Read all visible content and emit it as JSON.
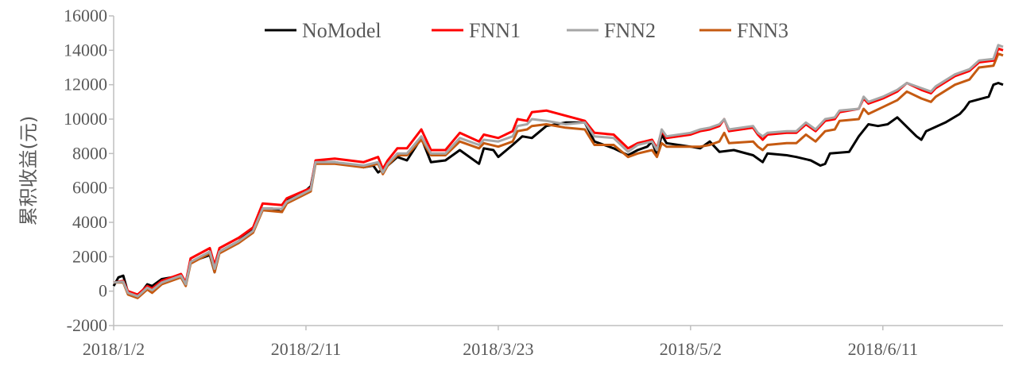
{
  "chart_data": {
    "type": "line",
    "title": "",
    "xlabel": "",
    "ylabel": "累积收益(元)",
    "ylim": [
      -2000,
      16000
    ],
    "yticks": [
      -2000,
      0,
      2000,
      4000,
      6000,
      8000,
      10000,
      12000,
      14000,
      16000
    ],
    "ytick_labels": [
      "-2000",
      "0",
      "2000",
      "4000",
      "6000",
      "8000",
      "10000",
      "12000",
      "14000",
      "16000"
    ],
    "x_unit": "days since 2018/1/2",
    "xlim": [
      0,
      185
    ],
    "xticks": [
      0,
      40,
      80,
      120,
      160
    ],
    "xtick_labels": [
      "2018/1/2",
      "2018/2/11",
      "2018/3/23",
      "2018/5/2",
      "2018/6/11"
    ],
    "grid": false,
    "legend_position": "top-center",
    "series": [
      {
        "name": "NoModel",
        "color": "#000000",
        "x": [
          0,
          1,
          2,
          3,
          5,
          7,
          8,
          10,
          14,
          15,
          16,
          20,
          21,
          22,
          26,
          29,
          31,
          33,
          35,
          36,
          39,
          41,
          42,
          46,
          52,
          54,
          55,
          57,
          59,
          61,
          64,
          66,
          69,
          72,
          76,
          77,
          79,
          80,
          83,
          85,
          87,
          90,
          94,
          98,
          100,
          104,
          107,
          109,
          111,
          112,
          113,
          114,
          115,
          120,
          122,
          124,
          126,
          129,
          133,
          135,
          136,
          140,
          142,
          145,
          147,
          148,
          149,
          153,
          155,
          157,
          159,
          161,
          163,
          167,
          168,
          169,
          173,
          176,
          177,
          178,
          182,
          183,
          184,
          185
        ],
        "values": [
          300,
          800,
          900,
          -100,
          -350,
          400,
          300,
          700,
          900,
          400,
          1700,
          2100,
          1100,
          2300,
          2900,
          3600,
          4800,
          4800,
          4600,
          5300,
          5600,
          6100,
          7500,
          7500,
          7200,
          7300,
          6900,
          7300,
          7800,
          7600,
          8900,
          7500,
          7600,
          8200,
          7400,
          8300,
          8200,
          7800,
          8500,
          9000,
          8900,
          9600,
          9800,
          9800,
          8700,
          8300,
          7900,
          8200,
          8400,
          8700,
          7900,
          9100,
          8600,
          8400,
          8300,
          8700,
          8100,
          8200,
          7900,
          7500,
          8000,
          7900,
          7800,
          7600,
          7300,
          7400,
          8000,
          8100,
          9000,
          9700,
          9600,
          9700,
          10100,
          9000,
          8800,
          9300,
          9800,
          10300,
          10600,
          11000,
          11300,
          12000,
          12100,
          12000
        ]
      },
      {
        "name": "FNN1",
        "color": "#ff0000",
        "x": [
          0,
          2,
          3,
          5,
          7,
          8,
          10,
          14,
          15,
          16,
          20,
          21,
          22,
          26,
          29,
          31,
          35,
          36,
          41,
          42,
          46,
          52,
          55,
          56,
          57,
          59,
          61,
          64,
          66,
          69,
          72,
          76,
          77,
          80,
          83,
          84,
          86,
          87,
          90,
          94,
          98,
          100,
          104,
          107,
          109,
          112,
          113,
          114,
          115,
          120,
          122,
          124,
          126,
          127,
          128,
          133,
          134,
          135,
          136,
          140,
          142,
          144,
          146,
          148,
          150,
          151,
          155,
          156,
          157,
          160,
          163,
          165,
          168,
          170,
          171,
          175,
          178,
          180,
          183,
          184,
          185
        ],
        "values": [
          500,
          600,
          0,
          -200,
          300,
          150,
          600,
          1000,
          500,
          1900,
          2500,
          1500,
          2500,
          3100,
          3700,
          5100,
          5000,
          5400,
          6000,
          7600,
          7700,
          7500,
          7800,
          7100,
          7600,
          8300,
          8300,
          9400,
          8200,
          8200,
          9200,
          8700,
          9100,
          8900,
          9300,
          10000,
          9900,
          10400,
          10500,
          10200,
          9900,
          9200,
          9100,
          8300,
          8600,
          8800,
          8300,
          9300,
          8900,
          9100,
          9300,
          9400,
          9600,
          10000,
          9300,
          9500,
          9100,
          8800,
          9100,
          9200,
          9200,
          9700,
          9300,
          9900,
          10000,
          10400,
          10600,
          11200,
          10900,
          11200,
          11600,
          12100,
          11700,
          11500,
          11800,
          12500,
          12800,
          13300,
          13400,
          14100,
          14000
        ]
      },
      {
        "name": "FNN2",
        "color": "#a6a6a6",
        "x": [
          0,
          2,
          3,
          5,
          7,
          8,
          10,
          14,
          15,
          16,
          20,
          21,
          22,
          26,
          29,
          31,
          35,
          36,
          41,
          42,
          46,
          52,
          55,
          56,
          57,
          59,
          61,
          64,
          66,
          69,
          72,
          76,
          77,
          80,
          83,
          84,
          86,
          87,
          90,
          94,
          98,
          100,
          104,
          107,
          109,
          112,
          113,
          114,
          115,
          120,
          122,
          124,
          126,
          127,
          128,
          133,
          134,
          135,
          136,
          140,
          142,
          144,
          146,
          148,
          150,
          151,
          155,
          156,
          157,
          160,
          163,
          165,
          168,
          170,
          171,
          175,
          178,
          180,
          183,
          184,
          185
        ],
        "values": [
          500,
          550,
          -100,
          -300,
          200,
          50,
          500,
          900,
          400,
          1700,
          2300,
          1300,
          2300,
          2900,
          3500,
          4800,
          4800,
          5200,
          5900,
          7500,
          7500,
          7300,
          7500,
          6900,
          7400,
          8000,
          8000,
          9000,
          8000,
          8000,
          8900,
          8500,
          8800,
          8700,
          9000,
          9600,
          9700,
          10000,
          9900,
          9700,
          9800,
          9000,
          8900,
          8100,
          8500,
          8700,
          8200,
          9400,
          9000,
          9200,
          9400,
          9500,
          9700,
          10000,
          9400,
          9600,
          9200,
          9000,
          9200,
          9300,
          9300,
          9800,
          9400,
          10000,
          10100,
          10500,
          10600,
          11300,
          11000,
          11300,
          11700,
          12100,
          11800,
          11600,
          11900,
          12600,
          12900,
          13400,
          13500,
          14300,
          14200
        ]
      },
      {
        "name": "FNN3",
        "color": "#c55a11",
        "x": [
          0,
          2,
          3,
          5,
          7,
          8,
          10,
          14,
          15,
          16,
          20,
          21,
          22,
          26,
          29,
          31,
          35,
          36,
          41,
          42,
          46,
          52,
          55,
          56,
          57,
          59,
          61,
          64,
          66,
          69,
          72,
          76,
          77,
          80,
          83,
          84,
          86,
          87,
          90,
          94,
          98,
          100,
          104,
          107,
          109,
          112,
          113,
          114,
          115,
          120,
          122,
          124,
          126,
          127,
          128,
          133,
          134,
          135,
          136,
          140,
          142,
          144,
          146,
          148,
          150,
          151,
          155,
          156,
          157,
          160,
          163,
          165,
          168,
          170,
          171,
          175,
          178,
          180,
          183,
          184,
          185
        ],
        "values": [
          500,
          500,
          -200,
          -400,
          100,
          -100,
          400,
          800,
          300,
          1600,
          2200,
          1100,
          2200,
          2800,
          3400,
          4700,
          4600,
          5100,
          5800,
          7400,
          7400,
          7200,
          7400,
          6800,
          7300,
          7900,
          7900,
          8800,
          7900,
          7900,
          8700,
          8300,
          8600,
          8400,
          8700,
          9300,
          9400,
          9600,
          9700,
          9500,
          9400,
          8500,
          8500,
          7800,
          8000,
          8200,
          7800,
          8600,
          8400,
          8400,
          8400,
          8500,
          8700,
          9200,
          8600,
          8700,
          8400,
          8200,
          8500,
          8600,
          8600,
          9100,
          8700,
          9300,
          9400,
          9900,
          10000,
          10600,
          10300,
          10700,
          11100,
          11600,
          11200,
          11000,
          11300,
          12000,
          12300,
          13000,
          13100,
          13800,
          13700
        ]
      }
    ]
  }
}
